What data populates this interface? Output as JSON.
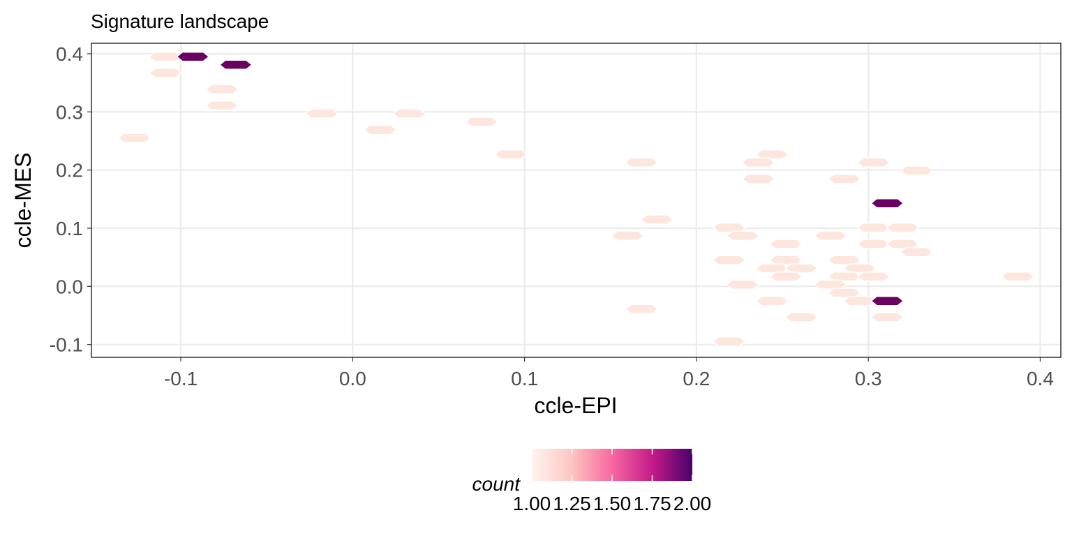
{
  "chart_data": {
    "type": "hexbin",
    "title": "Signature landscape",
    "xlabel": "ccle-EPI",
    "ylabel": "ccle-MES",
    "xlim": [
      -0.152,
      0.412
    ],
    "ylim": [
      -0.122,
      0.418
    ],
    "x_ticks": [
      "-0.1",
      "0.0",
      "0.1",
      "0.2",
      "0.3",
      "0.4"
    ],
    "x_tick_values": [
      -0.1,
      0.0,
      0.1,
      0.2,
      0.3,
      0.4
    ],
    "y_ticks": [
      "-0.1",
      "0.0",
      "0.1",
      "0.2",
      "0.3",
      "0.4"
    ],
    "y_tick_values": [
      -0.1,
      0.0,
      0.1,
      0.2,
      0.3,
      0.4
    ],
    "grid": true,
    "legend": {
      "title": "count",
      "position": "bottom",
      "min": 1,
      "max": 2,
      "colors": [
        "#fff5f0",
        "#fcc5c0",
        "#f768a1",
        "#c51b8a",
        "#49006a"
      ],
      "dark_color": "#6a0060",
      "light_color": "#fde6de",
      "labels": [
        "1.00",
        "1.25",
        "1.50",
        "1.75",
        "2.00"
      ],
      "label_values": [
        1.0,
        1.25,
        1.5,
        1.75,
        2.0
      ]
    },
    "points": [
      {
        "x": -0.109,
        "y": 0.395,
        "count": 1
      },
      {
        "x": -0.093,
        "y": 0.395,
        "count": 2
      },
      {
        "x": -0.068,
        "y": 0.381,
        "count": 2
      },
      {
        "x": -0.109,
        "y": 0.367,
        "count": 1
      },
      {
        "x": -0.076,
        "y": 0.339,
        "count": 1
      },
      {
        "x": -0.076,
        "y": 0.311,
        "count": 1
      },
      {
        "x": -0.018,
        "y": 0.297,
        "count": 1
      },
      {
        "x": 0.033,
        "y": 0.297,
        "count": 1
      },
      {
        "x": 0.075,
        "y": 0.283,
        "count": 1
      },
      {
        "x": 0.016,
        "y": 0.269,
        "count": 1
      },
      {
        "x": -0.127,
        "y": 0.255,
        "count": 1
      },
      {
        "x": 0.092,
        "y": 0.227,
        "count": 1
      },
      {
        "x": 0.244,
        "y": 0.227,
        "count": 1
      },
      {
        "x": 0.168,
        "y": 0.213,
        "count": 1
      },
      {
        "x": 0.236,
        "y": 0.213,
        "count": 1
      },
      {
        "x": 0.303,
        "y": 0.213,
        "count": 1
      },
      {
        "x": 0.328,
        "y": 0.199,
        "count": 1
      },
      {
        "x": 0.236,
        "y": 0.185,
        "count": 1
      },
      {
        "x": 0.286,
        "y": 0.185,
        "count": 1
      },
      {
        "x": 0.311,
        "y": 0.143,
        "count": 2
      },
      {
        "x": 0.177,
        "y": 0.115,
        "count": 1
      },
      {
        "x": 0.219,
        "y": 0.101,
        "count": 1
      },
      {
        "x": 0.303,
        "y": 0.101,
        "count": 1
      },
      {
        "x": 0.32,
        "y": 0.101,
        "count": 1
      },
      {
        "x": 0.16,
        "y": 0.087,
        "count": 1
      },
      {
        "x": 0.227,
        "y": 0.087,
        "count": 1
      },
      {
        "x": 0.278,
        "y": 0.087,
        "count": 1
      },
      {
        "x": 0.252,
        "y": 0.073,
        "count": 1
      },
      {
        "x": 0.303,
        "y": 0.073,
        "count": 1
      },
      {
        "x": 0.32,
        "y": 0.073,
        "count": 1
      },
      {
        "x": 0.328,
        "y": 0.059,
        "count": 1
      },
      {
        "x": 0.219,
        "y": 0.045,
        "count": 1
      },
      {
        "x": 0.252,
        "y": 0.045,
        "count": 1
      },
      {
        "x": 0.286,
        "y": 0.045,
        "count": 1
      },
      {
        "x": 0.244,
        "y": 0.031,
        "count": 1
      },
      {
        "x": 0.261,
        "y": 0.031,
        "count": 1
      },
      {
        "x": 0.295,
        "y": 0.031,
        "count": 1
      },
      {
        "x": 0.252,
        "y": 0.017,
        "count": 1
      },
      {
        "x": 0.286,
        "y": 0.017,
        "count": 1
      },
      {
        "x": 0.303,
        "y": 0.017,
        "count": 1
      },
      {
        "x": 0.387,
        "y": 0.017,
        "count": 1
      },
      {
        "x": 0.227,
        "y": 0.003,
        "count": 1
      },
      {
        "x": 0.278,
        "y": 0.003,
        "count": 1
      },
      {
        "x": 0.286,
        "y": -0.011,
        "count": 1
      },
      {
        "x": 0.244,
        "y": -0.025,
        "count": 1
      },
      {
        "x": 0.295,
        "y": -0.025,
        "count": 1
      },
      {
        "x": 0.311,
        "y": -0.025,
        "count": 2
      },
      {
        "x": 0.168,
        "y": -0.039,
        "count": 1
      },
      {
        "x": 0.261,
        "y": -0.053,
        "count": 1
      },
      {
        "x": 0.311,
        "y": -0.053,
        "count": 1
      },
      {
        "x": 0.219,
        "y": -0.095,
        "count": 1
      }
    ]
  }
}
